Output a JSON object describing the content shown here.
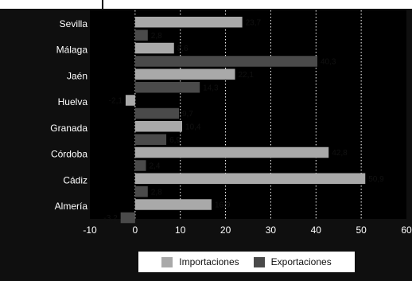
{
  "chart_data": {
    "type": "bar",
    "orientation": "horizontal",
    "categories": [
      "Sevilla",
      "Málaga",
      "Jaén",
      "Huelva",
      "Granada",
      "Córdoba",
      "Cádiz",
      "Almería"
    ],
    "series": [
      {
        "name": "Importaciones",
        "color": "#a9a9a9",
        "values": [
          23.7,
          8.6,
          22.1,
          -2.1,
          10.4,
          42.8,
          50.9,
          16.9
        ],
        "labels": [
          "23,7",
          "8,6",
          "22,1",
          "-2,1",
          "10,4",
          "42,8",
          "50,9",
          "16,9"
        ]
      },
      {
        "name": "Exportaciones",
        "color": "#4a4a4a",
        "values": [
          2.8,
          40.3,
          14.3,
          9.7,
          6.9,
          2.4,
          2.8,
          -3.2
        ],
        "labels": [
          "2,8",
          "40,3",
          "14,3",
          "9,7",
          "6,9",
          "2,4",
          "2,8",
          "-3,2"
        ]
      }
    ],
    "xlim": [
      -10,
      60
    ],
    "xticks": [
      "-10",
      "0",
      "10",
      "20",
      "30",
      "40",
      "50",
      "60"
    ],
    "grid": "vertical dotted",
    "legend_position": "bottom"
  }
}
